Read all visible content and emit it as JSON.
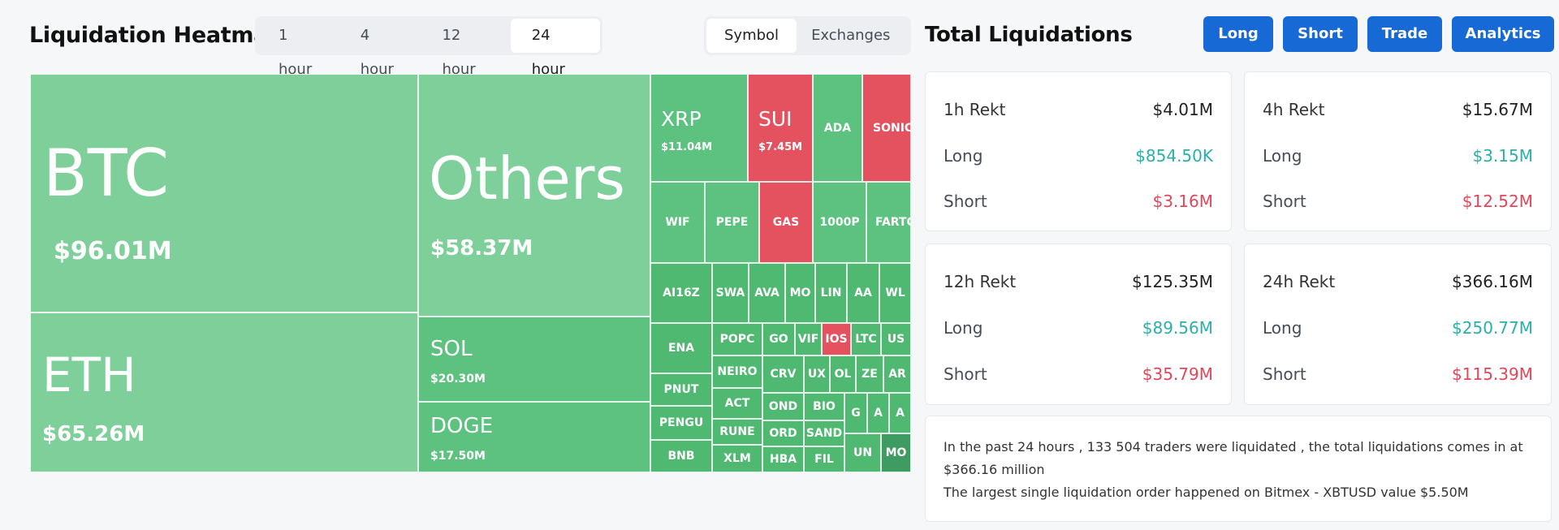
{
  "heatmap": {
    "title": "Liquidation Heatmap",
    "timeframes": [
      "1 hour",
      "4 hour",
      "12 hour",
      "24 hour"
    ],
    "active_timeframe": "24 hour",
    "views": [
      "Symbol",
      "Exchanges"
    ],
    "active_view": "Symbol",
    "big_cells": {
      "btc": {
        "symbol": "BTC",
        "value": "$96.01M"
      },
      "eth": {
        "symbol": "ETH",
        "value": "$65.26M"
      },
      "others": {
        "symbol": "Others",
        "value": "$58.37M"
      },
      "sol": {
        "symbol": "SOL",
        "value": "$20.30M"
      },
      "doge": {
        "symbol": "DOGE",
        "value": "$17.50M"
      },
      "xrp": {
        "symbol": "XRP",
        "value": "$11.04M"
      },
      "sui": {
        "symbol": "SUI",
        "value": "$7.45M"
      }
    },
    "small_cells": [
      "ADA",
      "SONIC",
      "WIF",
      "PEPE",
      "GAS",
      "1000P",
      "FARTC",
      "AI16Z",
      "SWA",
      "AVA",
      "MO",
      "LIN",
      "AA",
      "WL",
      "ENA",
      "POPC",
      "GO",
      "VIF",
      "IOS",
      "LTC",
      "US",
      "NEIRO",
      "CRV",
      "UX",
      "OL",
      "ZE",
      "AR",
      "PNUT",
      "ACT",
      "OND",
      "BIO",
      "G",
      "A",
      "A",
      "PENGU",
      "RUNE",
      "ORD",
      "SAND",
      "BNB",
      "XLM",
      "HBA",
      "FIL",
      "UN",
      "MO"
    ]
  },
  "totals": {
    "title": "Total Liquidations",
    "buttons": [
      "Long",
      "Short",
      "Trade",
      "Analytics"
    ],
    "cards": [
      {
        "label": "1h Rekt",
        "total": "$4.01M",
        "long_label": "Long",
        "long": "$854.50K",
        "short_label": "Short",
        "short": "$3.16M"
      },
      {
        "label": "4h Rekt",
        "total": "$15.67M",
        "long_label": "Long",
        "long": "$3.15M",
        "short_label": "Short",
        "short": "$12.52M"
      },
      {
        "label": "12h Rekt",
        "total": "$125.35M",
        "long_label": "Long",
        "long": "$89.56M",
        "short_label": "Short",
        "short": "$35.79M"
      },
      {
        "label": "24h Rekt",
        "total": "$366.16M",
        "long_label": "Long",
        "long": "$250.77M",
        "short_label": "Short",
        "short": "$115.39M"
      }
    ],
    "summary_line1": "In the past 24 hours , 133 504 traders were liquidated , the total liquidations comes in at $366.16 million",
    "summary_line2": "The largest single liquidation order happened on Bitmex - XBTUSD value $5.50M"
  },
  "colors": {
    "long": "#2ab0a6",
    "short": "#e0475a",
    "button": "#1769d6",
    "green": "#5dc17f",
    "red": "#e5525f"
  }
}
